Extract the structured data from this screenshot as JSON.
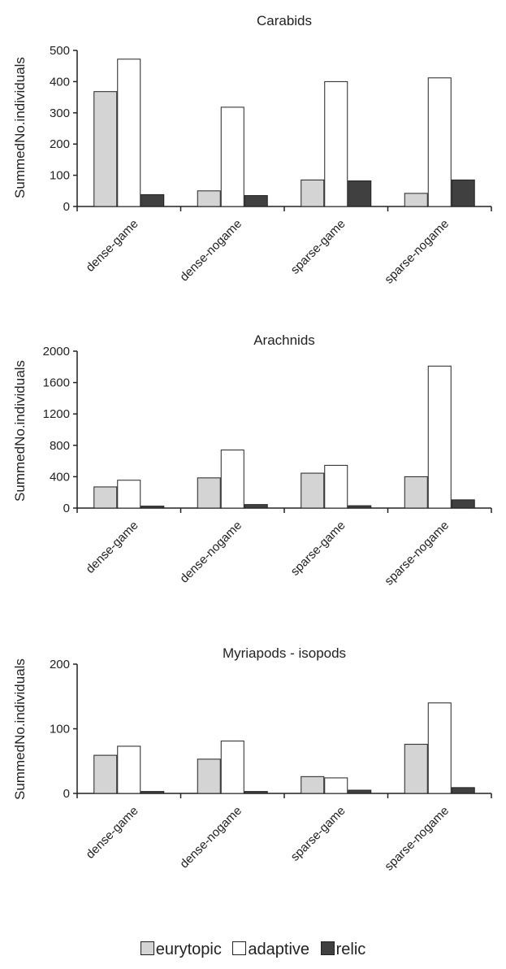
{
  "colors": {
    "eurytopic": "#d4d4d4",
    "adaptive": "#ffffff",
    "relic": "#404040",
    "axis": "#222222"
  },
  "legend": {
    "items": [
      {
        "key": "eurytopic",
        "label": "eurytopic"
      },
      {
        "key": "adaptive",
        "label": "adaptive"
      },
      {
        "key": "relic",
        "label": "relic"
      }
    ]
  },
  "chart_data": [
    {
      "type": "bar",
      "title": "Carabids",
      "ylabel": "SummedNo.individuals",
      "xlabel": "",
      "categories": [
        "dense-game",
        "dense-nogame",
        "sparse-game",
        "sparse-nogame"
      ],
      "ylim": [
        0,
        500
      ],
      "yticks": [
        0,
        100,
        200,
        300,
        400,
        500
      ],
      "series": [
        {
          "name": "eurytopic",
          "values": [
            368,
            50,
            85,
            42
          ]
        },
        {
          "name": "adaptive",
          "values": [
            472,
            318,
            400,
            412
          ]
        },
        {
          "name": "relic",
          "values": [
            38,
            35,
            82,
            85
          ]
        }
      ]
    },
    {
      "type": "bar",
      "title": "Arachnids",
      "ylabel": "SummedNo.individuals",
      "xlabel": "",
      "categories": [
        "dense-game",
        "dense-nogame",
        "sparse-game",
        "sparse-nogame"
      ],
      "ylim": [
        0,
        2000
      ],
      "yticks": [
        0,
        400,
        800,
        1200,
        1600,
        2000
      ],
      "series": [
        {
          "name": "eurytopic",
          "values": [
            270,
            385,
            445,
            400
          ]
        },
        {
          "name": "adaptive",
          "values": [
            355,
            740,
            545,
            1810
          ]
        },
        {
          "name": "relic",
          "values": [
            25,
            45,
            30,
            105
          ]
        }
      ]
    },
    {
      "type": "bar",
      "title": "Myriapods - isopods",
      "ylabel": "SummedNo.individuals",
      "xlabel": "",
      "categories": [
        "dense-game",
        "dense-nogame",
        "sparse-game",
        "sparse-nogame"
      ],
      "ylim": [
        0,
        200
      ],
      "yticks": [
        0,
        100,
        200
      ],
      "series": [
        {
          "name": "eurytopic",
          "values": [
            59,
            53,
            26,
            76
          ]
        },
        {
          "name": "adaptive",
          "values": [
            73,
            81,
            24,
            140
          ]
        },
        {
          "name": "relic",
          "values": [
            3,
            3,
            5,
            9
          ]
        }
      ]
    }
  ]
}
